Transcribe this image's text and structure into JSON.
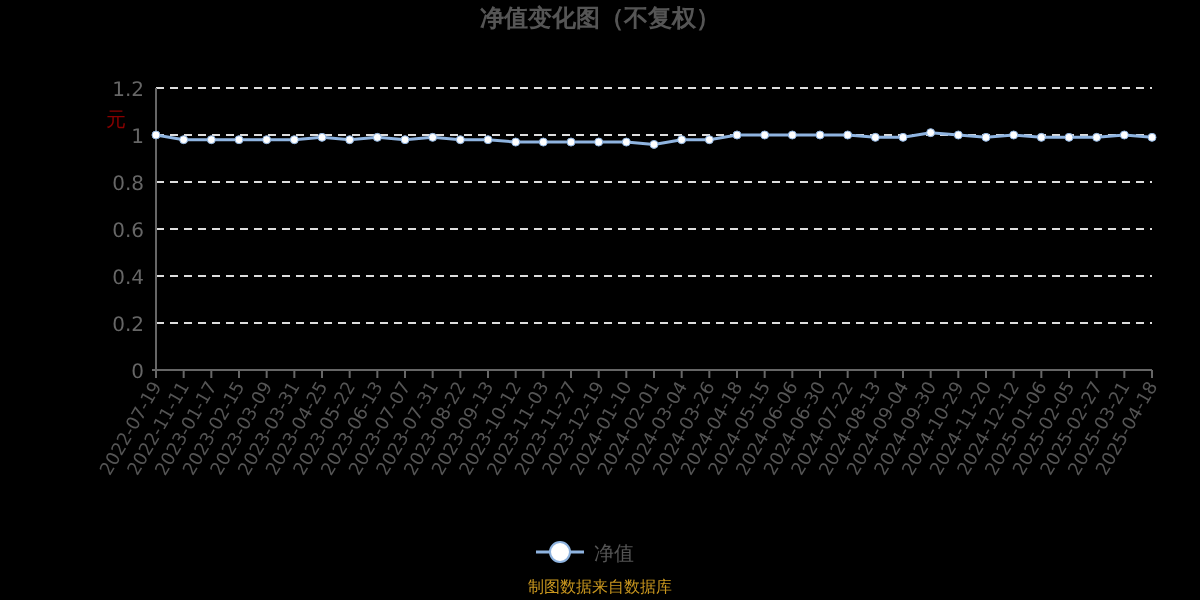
{
  "chart_data": {
    "type": "line",
    "title": "净值变化图（不复权）",
    "ylabel": "元",
    "categories": [
      "2022-07-19",
      "2022-11-11",
      "2023-01-17",
      "2023-02-15",
      "2023-03-09",
      "2023-03-31",
      "2023-04-25",
      "2023-05-22",
      "2023-06-13",
      "2023-07-07",
      "2023-07-31",
      "2023-08-22",
      "2023-09-13",
      "2023-10-12",
      "2023-11-03",
      "2023-11-27",
      "2023-12-19",
      "2024-01-10",
      "2024-02-01",
      "2024-03-04",
      "2024-03-26",
      "2024-04-18",
      "2024-05-15",
      "2024-06-06",
      "2024-06-30",
      "2024-07-22",
      "2024-08-13",
      "2024-09-04",
      "2024-09-30",
      "2024-10-29",
      "2024-11-20",
      "2024-12-12",
      "2025-01-06",
      "2025-02-05",
      "2025-02-27",
      "2025-03-21",
      "2025-04-18"
    ],
    "series": [
      {
        "name": "净值",
        "color": "#8fb4e0",
        "values": [
          1.0,
          0.98,
          0.98,
          0.98,
          0.98,
          0.98,
          0.99,
          0.98,
          0.99,
          0.98,
          0.99,
          0.98,
          0.98,
          0.97,
          0.97,
          0.97,
          0.97,
          0.97,
          0.96,
          0.98,
          0.98,
          1.0,
          1.0,
          1.0,
          1.0,
          1.0,
          0.99,
          0.99,
          1.01,
          1.0,
          0.99,
          1.0,
          0.99,
          0.99,
          0.99,
          1.0,
          0.99
        ]
      }
    ],
    "ylim": [
      0,
      1.2
    ],
    "yticks": [
      0,
      0.2,
      0.4,
      0.6,
      0.8,
      1,
      1.2
    ],
    "grid": "y",
    "legend": "bottom",
    "marker": "circle",
    "line_style": "solid",
    "annotations": [
      "制图数据来自数据库"
    ]
  }
}
